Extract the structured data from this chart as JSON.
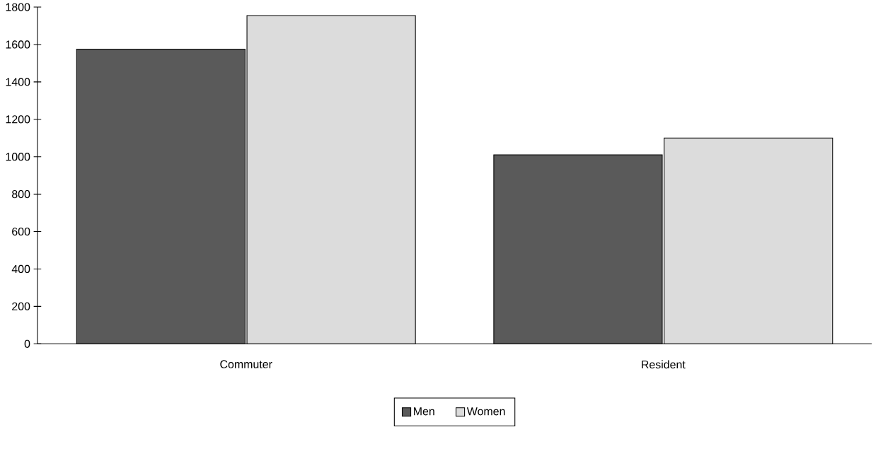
{
  "chart_data": {
    "type": "bar",
    "categories": [
      "Commuter",
      "Resident"
    ],
    "series": [
      {
        "name": "Men",
        "color": "#5a5a5a",
        "values": [
          1575,
          1010
        ]
      },
      {
        "name": "Women",
        "color": "#dcdcdc",
        "values": [
          1755,
          1100
        ]
      }
    ],
    "ylim": [
      0,
      1800
    ],
    "yticks": [
      0,
      200,
      400,
      600,
      800,
      1000,
      1200,
      1400,
      1600,
      1800
    ],
    "grid": false,
    "legend": "bottom"
  }
}
